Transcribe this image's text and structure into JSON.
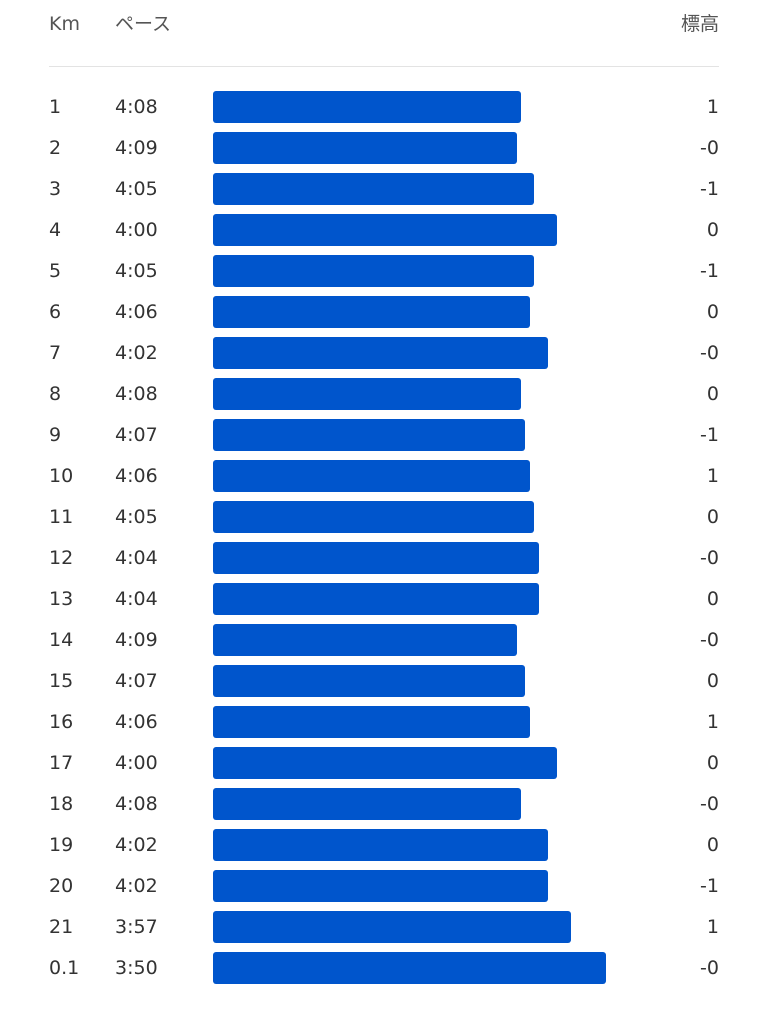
{
  "header": {
    "km": "Km",
    "pace": "ペース",
    "elevation": "標高"
  },
  "rows": [
    [
      "1",
      "4:08",
      "1"
    ],
    [
      "2",
      "4:09",
      "-0"
    ],
    [
      "3",
      "4:05",
      "-1"
    ],
    [
      "4",
      "4:00",
      "0"
    ],
    [
      "5",
      "4:05",
      "-1"
    ],
    [
      "6",
      "4:06",
      "0"
    ],
    [
      "7",
      "4:02",
      "-0"
    ],
    [
      "8",
      "4:08",
      "0"
    ],
    [
      "9",
      "4:07",
      "-1"
    ],
    [
      "10",
      "4:06",
      "1"
    ],
    [
      "11",
      "4:05",
      "0"
    ],
    [
      "12",
      "4:04",
      "-0"
    ],
    [
      "13",
      "4:04",
      "0"
    ],
    [
      "14",
      "4:09",
      "-0"
    ],
    [
      "15",
      "4:07",
      "0"
    ],
    [
      "16",
      "4:06",
      "1"
    ],
    [
      "17",
      "4:00",
      "0"
    ],
    [
      "18",
      "4:08",
      "-0"
    ],
    [
      "19",
      "4:02",
      "0"
    ],
    [
      "20",
      "4:02",
      "-1"
    ],
    [
      "21",
      "3:57",
      "1"
    ],
    [
      "0.1",
      "3:50",
      "-0"
    ]
  ]
}
